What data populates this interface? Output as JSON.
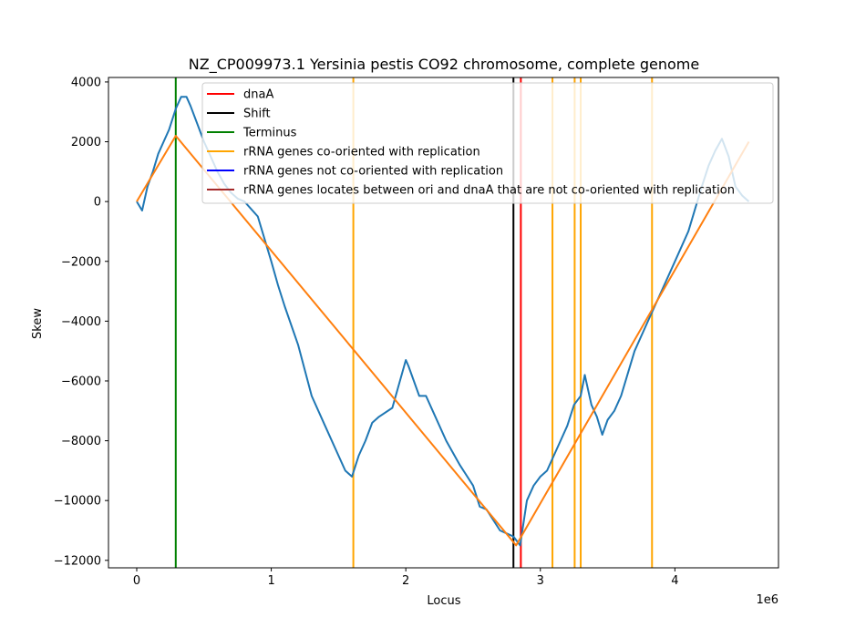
{
  "chart_data": {
    "type": "line",
    "title": "NZ_CP009973.1 Yersinia pestis CO92 chromosome, complete genome",
    "xlabel": "Locus",
    "ylabel": "Skew",
    "x_offset_label": "1e6",
    "xlim": [
      -210000,
      4770000
    ],
    "ylim": [
      -12250,
      4150
    ],
    "x_ticks": [
      0,
      1000000,
      2000000,
      3000000,
      4000000
    ],
    "x_tick_labels": [
      "0",
      "1",
      "2",
      "3",
      "4"
    ],
    "y_ticks": [
      -12000,
      -10000,
      -8000,
      -6000,
      -4000,
      -2000,
      0,
      2000,
      4000
    ],
    "y_tick_labels": [
      "−12000",
      "−10000",
      "−8000",
      "−6000",
      "−4000",
      "−2000",
      "0",
      "2000",
      "4000"
    ],
    "grid": false,
    "legend_position": "upper-right",
    "legend": [
      {
        "label": "dnaA",
        "color": "#ff0000"
      },
      {
        "label": "Shift",
        "color": "#000000"
      },
      {
        "label": "Terminus",
        "color": "#008000"
      },
      {
        "label": "rRNA genes co-oriented with replication",
        "color": "#ffa500"
      },
      {
        "label": "rRNA genes not co-oriented with replication",
        "color": "#0000ff"
      },
      {
        "label": "rRNA genes locates between ori and dnaA that are not co-oriented with replication",
        "color": "#a52a2a"
      }
    ],
    "vertical_lines": [
      {
        "x": 290000,
        "color": "#008000"
      },
      {
        "x": 1610000,
        "color": "#ffa500"
      },
      {
        "x": 2800000,
        "color": "#000000"
      },
      {
        "x": 2855000,
        "color": "#ff0000"
      },
      {
        "x": 3090000,
        "color": "#ffa500"
      },
      {
        "x": 3255000,
        "color": "#ffa500"
      },
      {
        "x": 3300000,
        "color": "#ffa500"
      },
      {
        "x": 3830000,
        "color": "#ffa500"
      }
    ],
    "series": [
      {
        "color": "#1f77b4",
        "x": [
          0,
          40000,
          80000,
          120000,
          160000,
          200000,
          240000,
          290000,
          330000,
          370000,
          400000,
          450000,
          500000,
          550000,
          600000,
          650000,
          700000,
          750000,
          800000,
          900000,
          1000000,
          1050000,
          1100000,
          1200000,
          1300000,
          1400000,
          1500000,
          1550000,
          1600000,
          1650000,
          1700000,
          1750000,
          1800000,
          1900000,
          2000000,
          2020000,
          2100000,
          2150000,
          2200000,
          2300000,
          2400000,
          2500000,
          2550000,
          2600000,
          2700000,
          2750000,
          2800000,
          2850000,
          2900000,
          2950000,
          3000000,
          3050000,
          3100000,
          3150000,
          3200000,
          3250000,
          3300000,
          3330000,
          3380000,
          3420000,
          3460000,
          3500000,
          3550000,
          3600000,
          3700000,
          3800000,
          3900000,
          4000000,
          4100000,
          4200000,
          4250000,
          4300000,
          4350000,
          4400000,
          4450000,
          4500000,
          4550000
        ],
        "y": [
          0,
          -300,
          500,
          1000,
          1600,
          2000,
          2400,
          3100,
          3500,
          3500,
          3200,
          2600,
          2000,
          1500,
          1000,
          600,
          300,
          100,
          0,
          -500,
          -2000,
          -2800,
          -3500,
          -4800,
          -6500,
          -7500,
          -8500,
          -9000,
          -9200,
          -8500,
          -8000,
          -7400,
          -7200,
          -6900,
          -5300,
          -5500,
          -6500,
          -6500,
          -7000,
          -8000,
          -8800,
          -9500,
          -10200,
          -10300,
          -11000,
          -11100,
          -11200,
          -11500,
          -10000,
          -9500,
          -9200,
          -9000,
          -8500,
          -8000,
          -7500,
          -6800,
          -6500,
          -5800,
          -6800,
          -7200,
          -7800,
          -7300,
          -7000,
          -6500,
          -5000,
          -4000,
          -3000,
          -2000,
          -1000,
          500,
          1200,
          1700,
          2100,
          1500,
          500,
          200,
          0
        ]
      },
      {
        "color": "#ff7f0e",
        "x": [
          0,
          290000,
          2820000,
          4550000
        ],
        "y": [
          0,
          2200,
          -11500,
          2000
        ]
      }
    ]
  }
}
